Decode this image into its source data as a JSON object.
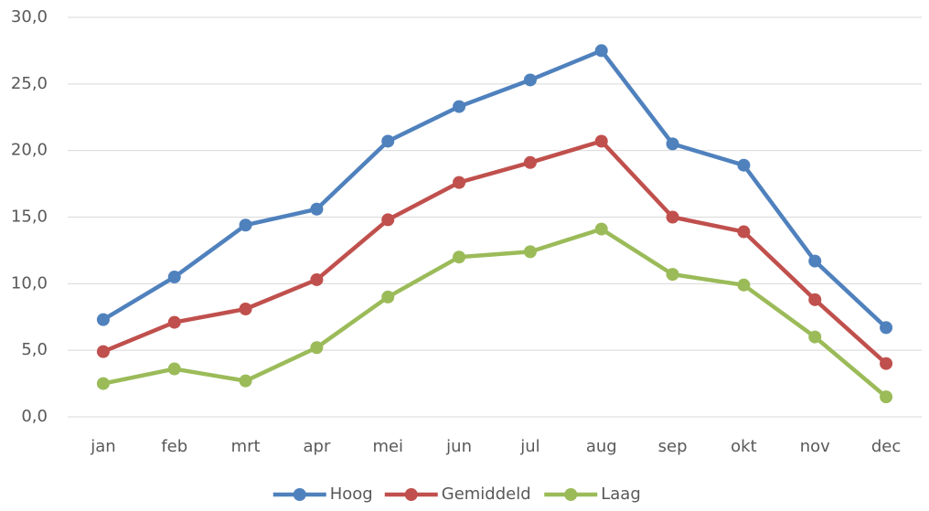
{
  "chart_data": {
    "type": "line",
    "categories": [
      "jan",
      "feb",
      "mrt",
      "apr",
      "mei",
      "jun",
      "jul",
      "aug",
      "sep",
      "okt",
      "nov",
      "dec"
    ],
    "series": [
      {
        "name": "Hoog",
        "color": "#4f81bd",
        "values": [
          7.3,
          10.5,
          14.4,
          15.6,
          20.7,
          23.3,
          25.3,
          27.5,
          20.5,
          18.9,
          11.7,
          6.7
        ]
      },
      {
        "name": "Gemiddeld",
        "color": "#c0504d",
        "values": [
          4.9,
          7.1,
          8.1,
          10.3,
          14.8,
          17.6,
          19.1,
          20.7,
          15.0,
          13.9,
          8.8,
          4.0
        ]
      },
      {
        "name": "Laag",
        "color": "#9bbb59",
        "values": [
          2.5,
          3.6,
          2.7,
          5.2,
          9.0,
          12.0,
          12.4,
          14.1,
          10.7,
          9.9,
          6.0,
          1.5
        ]
      }
    ],
    "ylim": [
      0,
      30
    ],
    "yticks": [
      {
        "value": 0,
        "label": "0,0"
      },
      {
        "value": 5,
        "label": "5,0"
      },
      {
        "value": 10,
        "label": "10,0"
      },
      {
        "value": 15,
        "label": "15,0"
      },
      {
        "value": 20,
        "label": "20,0"
      },
      {
        "value": 25,
        "label": "25,0"
      },
      {
        "value": 30,
        "label": "30,0"
      }
    ],
    "grid": true,
    "legend": "bottom"
  }
}
